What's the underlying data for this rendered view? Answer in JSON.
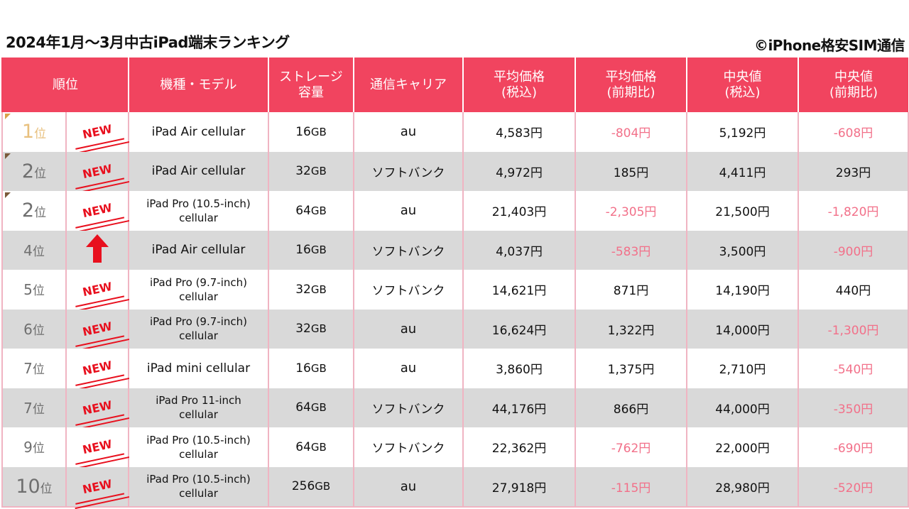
{
  "title": "2024年1月～3月中古iPad端末ランキング",
  "credit": "©iPhone格安SIM通信",
  "headers": {
    "rank": "順位",
    "model": "機種・モデル",
    "storage_line1": "ストレージ",
    "storage_line2": "容量",
    "carrier": "通信キャリア",
    "avg_price_line1": "平均価格",
    "avg_price_line2": "(税込)",
    "avg_change_line1": "平均価格",
    "avg_change_line2": "(前期比)",
    "median_line1": "中央値",
    "median_line2": "(税込)",
    "median_change_line1": "中央値",
    "median_change_line2": "(前期比)"
  },
  "badges": {
    "new": "NEW"
  },
  "rows": [
    {
      "rank_num": "1",
      "rank_suffix": "位",
      "badge": "new",
      "model_line1": "iPad Air cellular",
      "model_line2": "",
      "storage_num": "16",
      "storage_unit": "GB",
      "carrier": "au",
      "avg_price": "4,583円",
      "avg_change": "-804円",
      "median": "5,192円",
      "median_change": "-608円"
    },
    {
      "rank_num": "2",
      "rank_suffix": "位",
      "badge": "new",
      "model_line1": "iPad Air cellular",
      "model_line2": "",
      "storage_num": "32",
      "storage_unit": "GB",
      "carrier": "ソフトバンク",
      "avg_price": "4,972円",
      "avg_change": "185円",
      "median": "4,411円",
      "median_change": "293円"
    },
    {
      "rank_num": "2",
      "rank_suffix": "位",
      "badge": "new",
      "model_line1": "iPad Pro (10.5-inch)",
      "model_line2": "cellular",
      "storage_num": "64",
      "storage_unit": "GB",
      "carrier": "au",
      "avg_price": "21,403円",
      "avg_change": "-2,305円",
      "median": "21,500円",
      "median_change": "-1,820円"
    },
    {
      "rank_num": "4",
      "rank_suffix": "位",
      "badge": "up",
      "model_line1": "iPad Air cellular",
      "model_line2": "",
      "storage_num": "16",
      "storage_unit": "GB",
      "carrier": "ソフトバンク",
      "avg_price": "4,037円",
      "avg_change": "-583円",
      "median": "3,500円",
      "median_change": "-900円"
    },
    {
      "rank_num": "5",
      "rank_suffix": "位",
      "badge": "new",
      "model_line1": "iPad Pro (9.7-inch)",
      "model_line2": "cellular",
      "storage_num": "32",
      "storage_unit": "GB",
      "carrier": "ソフトバンク",
      "avg_price": "14,621円",
      "avg_change": "871円",
      "median": "14,190円",
      "median_change": "440円"
    },
    {
      "rank_num": "6",
      "rank_suffix": "位",
      "badge": "new",
      "model_line1": "iPad Pro (9.7-inch)",
      "model_line2": "cellular",
      "storage_num": "32",
      "storage_unit": "GB",
      "carrier": "au",
      "avg_price": "16,624円",
      "avg_change": "1,322円",
      "median": "14,000円",
      "median_change": "-1,300円"
    },
    {
      "rank_num": "7",
      "rank_suffix": "位",
      "badge": "new",
      "model_line1": "iPad mini cellular",
      "model_line2": "",
      "storage_num": "16",
      "storage_unit": "GB",
      "carrier": "au",
      "avg_price": "3,860円",
      "avg_change": "1,375円",
      "median": "2,710円",
      "median_change": "-540円"
    },
    {
      "rank_num": "7",
      "rank_suffix": "位",
      "badge": "new",
      "model_line1": "iPad Pro 11-inch",
      "model_line2": "cellular",
      "storage_num": "64",
      "storage_unit": "GB",
      "carrier": "ソフトバンク",
      "avg_price": "44,176円",
      "avg_change": "866円",
      "median": "44,000円",
      "median_change": "-350円"
    },
    {
      "rank_num": "9",
      "rank_suffix": "位",
      "badge": "new",
      "model_line1": "iPad Pro (10.5-inch)",
      "model_line2": "cellular",
      "storage_num": "64",
      "storage_unit": "GB",
      "carrier": "ソフトバンク",
      "avg_price": "22,362円",
      "avg_change": "-762円",
      "median": "22,000円",
      "median_change": "-690円"
    },
    {
      "rank_num": "10",
      "rank_suffix": "位",
      "badge": "new",
      "model_line1": "iPad Pro (10.5-inch)",
      "model_line2": "cellular",
      "storage_num": "256",
      "storage_unit": "GB",
      "carrier": "au",
      "avg_price": "27,918円",
      "avg_change": "-115円",
      "median": "28,980円",
      "median_change": "-520円"
    }
  ],
  "colors": {
    "header_bg": "#f1445f",
    "header_text": "#ffffff",
    "row_alt_bg": "#d9d9d9",
    "border": "#f0b4c2",
    "negative_text": "#f27089",
    "new_badge": "#e8101e",
    "first_place": "#e8c07e"
  },
  "icons": {
    "rank_up": "red-up-arrow-icon",
    "corner": "triangle-corner-icon"
  }
}
